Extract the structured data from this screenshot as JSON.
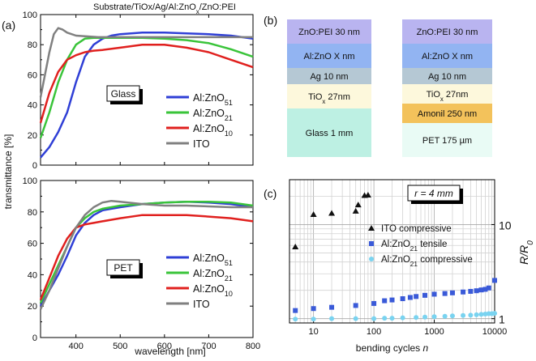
{
  "figure": {
    "title": "Substrate/TiOx/Ag/Al:ZnO",
    "title_sub": "x",
    "title_tail": "/ZnO:PEI",
    "panel_labels": [
      "(a)",
      "(b)",
      "(c)"
    ]
  },
  "colors": {
    "AZO51": "#2f3fd6",
    "AZO21": "#3ac43a",
    "AZO10": "#e0201e",
    "ITO": "#808080",
    "ito_marker": "#111111",
    "azo21_tensile": "#3a5ad8",
    "azo21_compressive": "#79d3f0"
  },
  "stack_glass": {
    "layers": [
      {
        "main": "ZnO:PEI 30 nm",
        "sub": "",
        "tail": "",
        "color": "#b9b4f0",
        "h": 30
      },
      {
        "main": "Al:ZnO X nm",
        "sub": "",
        "tail": "",
        "color": "#92b4f2",
        "h": 30
      },
      {
        "main": "Ag 10 nm",
        "sub": "",
        "tail": "",
        "color": "#b5c8d4",
        "h": 20
      },
      {
        "main": "TiO",
        "sub": "x",
        "tail": " 27nm",
        "color": "#fdf8dc",
        "h": 30
      },
      {
        "main": "Glass  1 mm",
        "sub": "",
        "tail": "",
        "color": "#bdf0e3",
        "h": 60
      }
    ]
  },
  "stack_pet": {
    "layers": [
      {
        "main": "ZnO:PEI 30 nm",
        "sub": "",
        "tail": "",
        "color": "#b9b4f0",
        "h": 30
      },
      {
        "main": "Al:ZnO X nm",
        "sub": "",
        "tail": "",
        "color": "#92b4f2",
        "h": 30
      },
      {
        "main": "Ag 10 nm",
        "sub": "",
        "tail": "",
        "color": "#b5c8d4",
        "h": 20
      },
      {
        "main": "TiO",
        "sub": "x",
        "tail": " 27nm",
        "color": "#fdf8dc",
        "h": 24
      },
      {
        "main": "Amonil 250 nm",
        "sub": "",
        "tail": "",
        "color": "#f3c25b",
        "h": 24
      },
      {
        "main": "PET 175 µm",
        "sub": "",
        "tail": "",
        "color": "#e9fbf5",
        "h": 42
      }
    ]
  },
  "chart_data": [
    {
      "type": "line",
      "panel": "(a) top",
      "box_label": "Glass",
      "xlabel": "wavelength [nm]",
      "ylabel": "transmittance [%]",
      "xlim": [
        320,
        800
      ],
      "ylim": [
        0,
        100
      ],
      "xticks": [
        400,
        500,
        600,
        700,
        800
      ],
      "yticks": [
        0,
        20,
        40,
        60,
        80,
        100
      ],
      "legend": "right",
      "series": [
        {
          "name": "Al:ZnO",
          "sub": "51",
          "key": "AZO51",
          "x": [
            320,
            340,
            360,
            380,
            400,
            420,
            440,
            460,
            480,
            500,
            550,
            600,
            650,
            700,
            750,
            800
          ],
          "y": [
            5,
            12,
            22,
            35,
            55,
            72,
            80,
            84,
            86,
            87,
            88,
            88,
            87.5,
            87,
            86,
            84
          ]
        },
        {
          "name": "Al:ZnO",
          "sub": "21",
          "key": "AZO21",
          "x": [
            320,
            340,
            360,
            380,
            400,
            420,
            440,
            460,
            500,
            550,
            600,
            650,
            700,
            750,
            800
          ],
          "y": [
            18,
            35,
            55,
            70,
            80,
            84,
            84.5,
            84.5,
            84.5,
            84.5,
            84,
            83,
            81,
            77,
            72
          ]
        },
        {
          "name": "Al:ZnO",
          "sub": "10",
          "key": "AZO10",
          "x": [
            320,
            340,
            360,
            380,
            400,
            420,
            440,
            460,
            500,
            550,
            600,
            650,
            700,
            750,
            800
          ],
          "y": [
            28,
            48,
            62,
            70,
            73,
            75,
            76,
            76.5,
            78,
            80,
            80,
            78,
            75,
            70,
            65
          ]
        },
        {
          "name": "ITO",
          "sub": "",
          "key": "ITO",
          "x": [
            320,
            340,
            350,
            360,
            370,
            380,
            400,
            450,
            500,
            550,
            600,
            650,
            700,
            750,
            800
          ],
          "y": [
            45,
            75,
            87,
            91,
            90,
            88,
            86,
            85,
            85,
            85,
            85,
            85,
            85,
            85,
            85
          ]
        }
      ]
    },
    {
      "type": "line",
      "panel": "(a) bottom",
      "box_label": "PET",
      "xlabel": "wavelength [nm]",
      "ylabel": "transmittance [%]",
      "xlim": [
        320,
        800
      ],
      "ylim": [
        0,
        100
      ],
      "xticks": [
        400,
        500,
        600,
        700,
        800
      ],
      "yticks": [
        0,
        20,
        40,
        60,
        80,
        100
      ],
      "legend": "right",
      "series": [
        {
          "name": "Al:ZnO",
          "sub": "51",
          "key": "AZO51",
          "x": [
            320,
            340,
            360,
            380,
            400,
            420,
            440,
            460,
            480,
            500,
            550,
            600,
            650,
            700,
            750,
            800
          ],
          "y": [
            20,
            30,
            40,
            52,
            65,
            73,
            78,
            81,
            82,
            83,
            85,
            86,
            86.5,
            86,
            85,
            83
          ]
        },
        {
          "name": "Al:ZnO",
          "sub": "21",
          "key": "AZO21",
          "x": [
            320,
            340,
            360,
            380,
            400,
            420,
            440,
            460,
            500,
            550,
            600,
            650,
            700,
            750,
            800
          ],
          "y": [
            22,
            34,
            46,
            58,
            70,
            76,
            80,
            82,
            84,
            85,
            86,
            86.5,
            86.5,
            86,
            84
          ]
        },
        {
          "name": "Al:ZnO",
          "sub": "10",
          "key": "AZO10",
          "x": [
            320,
            340,
            360,
            380,
            400,
            420,
            440,
            460,
            500,
            550,
            600,
            650,
            700,
            750,
            800
          ],
          "y": [
            24,
            38,
            52,
            63,
            70,
            72,
            73,
            74,
            76,
            78,
            78,
            78,
            77,
            76,
            74
          ]
        },
        {
          "name": "ITO",
          "sub": "",
          "key": "ITO",
          "x": [
            320,
            340,
            360,
            380,
            400,
            420,
            440,
            460,
            480,
            500,
            550,
            600,
            650,
            700,
            750,
            800
          ],
          "y": [
            18,
            30,
            44,
            58,
            70,
            78,
            83,
            86,
            87,
            86.5,
            85,
            84,
            84,
            83.5,
            83,
            83
          ]
        }
      ]
    },
    {
      "type": "scatter",
      "panel": "(c)",
      "xlabel": "bending cycles",
      "xlabel_var": "n",
      "ylabel": "R/R",
      "ylabel_sub": "0",
      "xscale": "log",
      "yscale": "log",
      "xlim": [
        4,
        10000
      ],
      "ylim": [
        0.9,
        30
      ],
      "xticks": [
        10,
        100,
        1000,
        10000
      ],
      "yticks": [
        1,
        10
      ],
      "grid": true,
      "annotation": "r = 4 mm",
      "legend": "lower-right",
      "series": [
        {
          "name": "ITO compressive",
          "sub": "",
          "tail": "",
          "key": "ito_marker",
          "marker": "triangle",
          "x": [
            5,
            10,
            20,
            50,
            55,
            70,
            80
          ],
          "y": [
            5.8,
            12.8,
            13.2,
            13.9,
            16.2,
            20.4,
            20.6
          ]
        },
        {
          "name": "Al:ZnO",
          "sub": "21",
          "tail": " tensile",
          "key": "azo21_tensile",
          "marker": "square",
          "x": [
            5,
            10,
            20,
            50,
            100,
            150,
            200,
            300,
            400,
            500,
            700,
            1000,
            1500,
            2000,
            3000,
            4000,
            5000,
            6000,
            7000,
            8000,
            10000
          ],
          "y": [
            1.22,
            1.28,
            1.32,
            1.38,
            1.45,
            1.55,
            1.58,
            1.63,
            1.68,
            1.72,
            1.77,
            1.82,
            1.85,
            1.88,
            1.92,
            1.95,
            1.98,
            2.02,
            2.05,
            2.12,
            2.55
          ]
        },
        {
          "name": "Al:ZnO",
          "sub": "21",
          "tail": "  compressive",
          "key": "azo21_compressive",
          "marker": "circle",
          "x": [
            5,
            10,
            20,
            50,
            100,
            150,
            200,
            300,
            500,
            700,
            1000,
            1500,
            2000,
            3000,
            4000,
            5000,
            6000,
            7000,
            8000,
            9000,
            10000
          ],
          "y": [
            0.99,
            0.99,
            1.0,
            1.0,
            1.0,
            1.01,
            1.01,
            1.02,
            1.03,
            1.04,
            1.05,
            1.06,
            1.07,
            1.08,
            1.09,
            1.1,
            1.11,
            1.12,
            1.13,
            1.13,
            1.14
          ]
        }
      ]
    }
  ]
}
